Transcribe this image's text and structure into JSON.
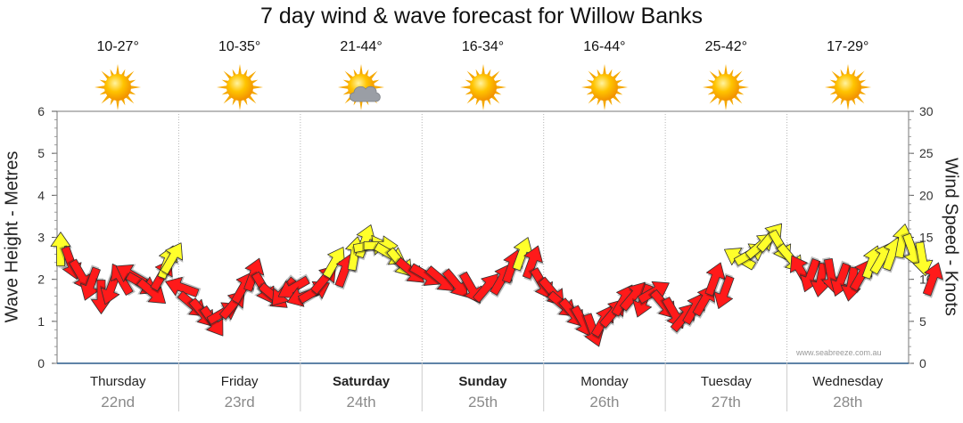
{
  "title": "7 day wind & wave forecast for Willow Banks",
  "days": [
    {
      "day": "Thursday",
      "date": "22nd",
      "temp": "10-27°",
      "weather": "sunny",
      "bold": false
    },
    {
      "day": "Friday",
      "date": "23rd",
      "temp": "10-35°",
      "weather": "sunny",
      "bold": false
    },
    {
      "day": "Saturday",
      "date": "24th",
      "temp": "21-44°",
      "weather": "partly-cloudy",
      "bold": true
    },
    {
      "day": "Sunday",
      "date": "25th",
      "temp": "16-34°",
      "weather": "sunny",
      "bold": true
    },
    {
      "day": "Monday",
      "date": "26th",
      "temp": "16-44°",
      "weather": "sunny",
      "bold": false
    },
    {
      "day": "Tuesday",
      "date": "27th",
      "temp": "25-42°",
      "weather": "sunny",
      "bold": false
    },
    {
      "day": "Wednesday",
      "date": "28th",
      "temp": "17-29°",
      "weather": "sunny",
      "bold": false
    }
  ],
  "left_axis_label": "Wave Height - Metres",
  "right_axis_label": "Wind Speed - Knots",
  "watermark": "www.seabreeze.com.au",
  "colors": {
    "strong": "#ff1a1a",
    "moderate": "#ffff2a",
    "grid": "#b5b5b5"
  },
  "chart_data": {
    "type": "scatter",
    "left_axis": {
      "label": "Wave Height - Metres",
      "ylim": [
        0,
        6
      ],
      "ticks": [
        0,
        1,
        2,
        3,
        4,
        5,
        6
      ]
    },
    "right_axis": {
      "label": "Wind Speed - Knots",
      "ylim": [
        0,
        30
      ],
      "ticks": [
        0,
        5,
        10,
        15,
        20,
        25,
        30
      ]
    },
    "categories": [
      "Thursday 22nd",
      "Friday 23rd",
      "Saturday 24th",
      "Sunday 25th",
      "Monday 26th",
      "Tuesday 27th",
      "Wednesday 28th"
    ],
    "series": [
      {
        "marker": "wind-direction-arrow",
        "note_values": "x = hours from start of Thursday; y = wind speed in knots; dir = compass bearing arrow points toward",
        "points": [
          {
            "x": 0,
            "y": 13.5,
            "dir": 0,
            "color": "yellow"
          },
          {
            "x": 2,
            "y": 12,
            "dir": 160,
            "color": "red"
          },
          {
            "x": 4,
            "y": 10.5,
            "dir": 150,
            "color": "red"
          },
          {
            "x": 6,
            "y": 9.5,
            "dir": 200,
            "color": "red"
          },
          {
            "x": 8,
            "y": 8,
            "dir": 180,
            "color": "red"
          },
          {
            "x": 10,
            "y": 9,
            "dir": 200,
            "color": "red"
          },
          {
            "x": 12,
            "y": 10,
            "dir": 330,
            "color": "red"
          },
          {
            "x": 14,
            "y": 10.5,
            "dir": 300,
            "color": "red"
          },
          {
            "x": 16,
            "y": 9.5,
            "dir": 120,
            "color": "red"
          },
          {
            "x": 18,
            "y": 8.5,
            "dir": 130,
            "color": "red"
          },
          {
            "x": 20,
            "y": 10.5,
            "dir": 30,
            "color": "red"
          },
          {
            "x": 21,
            "y": 12,
            "dir": 20,
            "color": "yellow"
          },
          {
            "x": 22,
            "y": 12.5,
            "dir": 30,
            "color": "yellow"
          },
          {
            "x": 24,
            "y": 9,
            "dir": 290,
            "color": "red"
          },
          {
            "x": 26,
            "y": 7,
            "dir": 130,
            "color": "red"
          },
          {
            "x": 28,
            "y": 6,
            "dir": 140,
            "color": "red"
          },
          {
            "x": 30,
            "y": 5,
            "dir": 145,
            "color": "red"
          },
          {
            "x": 32,
            "y": 6,
            "dir": 60,
            "color": "red"
          },
          {
            "x": 34,
            "y": 7,
            "dir": 40,
            "color": "red"
          },
          {
            "x": 36,
            "y": 9,
            "dir": 30,
            "color": "red"
          },
          {
            "x": 38,
            "y": 10.5,
            "dir": 20,
            "color": "red"
          },
          {
            "x": 40,
            "y": 9,
            "dir": 150,
            "color": "red"
          },
          {
            "x": 42,
            "y": 8,
            "dir": 130,
            "color": "red"
          },
          {
            "x": 44,
            "y": 8.5,
            "dir": 220,
            "color": "red"
          },
          {
            "x": 46,
            "y": 9,
            "dir": 240,
            "color": "red"
          },
          {
            "x": 48,
            "y": 8,
            "dir": 250,
            "color": "red"
          },
          {
            "x": 50,
            "y": 8.5,
            "dir": 60,
            "color": "red"
          },
          {
            "x": 52,
            "y": 10,
            "dir": 40,
            "color": "red"
          },
          {
            "x": 54,
            "y": 12,
            "dir": 30,
            "color": "yellow"
          },
          {
            "x": 56,
            "y": 11,
            "dir": 20,
            "color": "red"
          },
          {
            "x": 58,
            "y": 13,
            "dir": 10,
            "color": "yellow"
          },
          {
            "x": 60,
            "y": 14.5,
            "dir": 20,
            "color": "yellow"
          },
          {
            "x": 61,
            "y": 14,
            "dir": 80,
            "color": "yellow"
          },
          {
            "x": 63,
            "y": 14,
            "dir": 90,
            "color": "yellow"
          },
          {
            "x": 65,
            "y": 13,
            "dir": 120,
            "color": "yellow"
          },
          {
            "x": 67,
            "y": 12,
            "dir": 140,
            "color": "yellow"
          },
          {
            "x": 69,
            "y": 11,
            "dir": 130,
            "color": "red"
          },
          {
            "x": 72,
            "y": 10.5,
            "dir": 120,
            "color": "red"
          },
          {
            "x": 75,
            "y": 10,
            "dir": 130,
            "color": "red"
          },
          {
            "x": 78,
            "y": 9.5,
            "dir": 140,
            "color": "red"
          },
          {
            "x": 81,
            "y": 9,
            "dir": 150,
            "color": "red"
          },
          {
            "x": 84,
            "y": 9,
            "dir": 40,
            "color": "red"
          },
          {
            "x": 87,
            "y": 10,
            "dir": 30,
            "color": "red"
          },
          {
            "x": 89,
            "y": 11.5,
            "dir": 20,
            "color": "red"
          },
          {
            "x": 91,
            "y": 13,
            "dir": 20,
            "color": "yellow"
          },
          {
            "x": 93,
            "y": 12,
            "dir": 20,
            "color": "red"
          },
          {
            "x": 95,
            "y": 9.5,
            "dir": 150,
            "color": "red"
          },
          {
            "x": 97,
            "y": 8.5,
            "dir": 140,
            "color": "red"
          },
          {
            "x": 99,
            "y": 7,
            "dir": 130,
            "color": "red"
          },
          {
            "x": 101,
            "y": 6,
            "dir": 140,
            "color": "red"
          },
          {
            "x": 103,
            "y": 5,
            "dir": 150,
            "color": "red"
          },
          {
            "x": 105,
            "y": 4,
            "dir": 160,
            "color": "red"
          },
          {
            "x": 107,
            "y": 5,
            "dir": 30,
            "color": "red"
          },
          {
            "x": 109,
            "y": 6,
            "dir": 40,
            "color": "red"
          },
          {
            "x": 111,
            "y": 7.5,
            "dir": 30,
            "color": "red"
          },
          {
            "x": 113,
            "y": 8,
            "dir": 40,
            "color": "red"
          },
          {
            "x": 115,
            "y": 7.5,
            "dir": 200,
            "color": "red"
          },
          {
            "x": 117,
            "y": 8.5,
            "dir": 60,
            "color": "red"
          },
          {
            "x": 119,
            "y": 7,
            "dir": 140,
            "color": "red"
          },
          {
            "x": 121,
            "y": 6,
            "dir": 150,
            "color": "red"
          },
          {
            "x": 123,
            "y": 5.5,
            "dir": 40,
            "color": "red"
          },
          {
            "x": 125,
            "y": 6.5,
            "dir": 30,
            "color": "red"
          },
          {
            "x": 127,
            "y": 7.5,
            "dir": 30,
            "color": "red"
          },
          {
            "x": 129,
            "y": 10,
            "dir": 20,
            "color": "red"
          },
          {
            "x": 131,
            "y": 8.5,
            "dir": 200,
            "color": "red"
          },
          {
            "x": 134,
            "y": 12.5,
            "dir": 300,
            "color": "yellow"
          },
          {
            "x": 136,
            "y": 13,
            "dir": 60,
            "color": "yellow"
          },
          {
            "x": 138,
            "y": 14,
            "dir": 50,
            "color": "yellow"
          },
          {
            "x": 140,
            "y": 15,
            "dir": 40,
            "color": "yellow"
          },
          {
            "x": 142,
            "y": 14,
            "dir": 150,
            "color": "yellow"
          },
          {
            "x": 144,
            "y": 12.5,
            "dir": 140,
            "color": "yellow"
          },
          {
            "x": 146,
            "y": 11,
            "dir": 330,
            "color": "red"
          },
          {
            "x": 148,
            "y": 10.5,
            "dir": 200,
            "color": "red"
          },
          {
            "x": 150,
            "y": 10,
            "dir": 190,
            "color": "red"
          },
          {
            "x": 152,
            "y": 10.5,
            "dir": 170,
            "color": "red"
          },
          {
            "x": 154,
            "y": 10,
            "dir": 200,
            "color": "red"
          },
          {
            "x": 156,
            "y": 9.5,
            "dir": 190,
            "color": "red"
          },
          {
            "x": 158,
            "y": 10.5,
            "dir": 30,
            "color": "red"
          },
          {
            "x": 160,
            "y": 12,
            "dir": 20,
            "color": "yellow"
          },
          {
            "x": 162,
            "y": 12.5,
            "dir": 30,
            "color": "yellow"
          },
          {
            "x": 164,
            "y": 13,
            "dir": 20,
            "color": "yellow"
          },
          {
            "x": 166,
            "y": 14.5,
            "dir": 10,
            "color": "yellow"
          },
          {
            "x": 168,
            "y": 13.5,
            "dir": 160,
            "color": "yellow"
          },
          {
            "x": 170,
            "y": 12.5,
            "dir": 170,
            "color": "yellow"
          },
          {
            "x": 172,
            "y": 10,
            "dir": 20,
            "color": "red"
          }
        ]
      }
    ],
    "grid": true,
    "legend": "none"
  }
}
